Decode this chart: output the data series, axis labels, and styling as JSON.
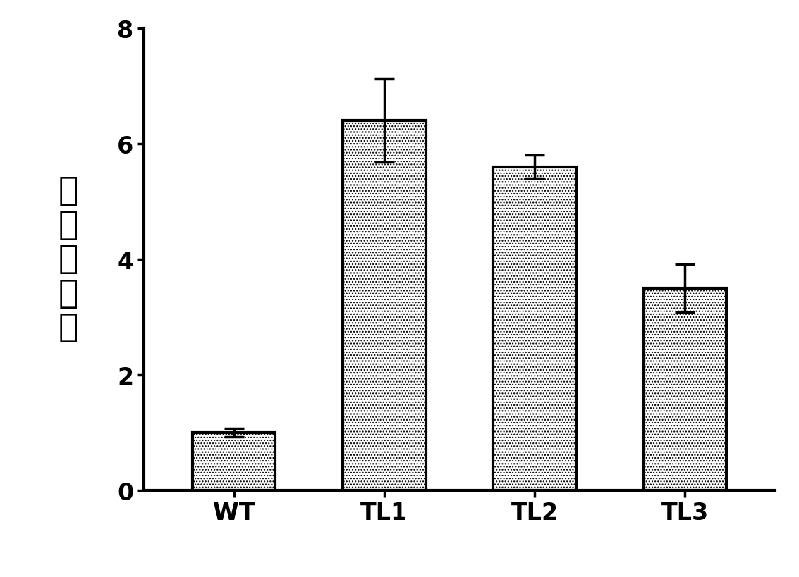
{
  "categories": [
    "WT",
    "TL1",
    "TL2",
    "TL3"
  ],
  "values": [
    1.0,
    6.4,
    5.6,
    3.5
  ],
  "errors": [
    0.07,
    0.72,
    0.2,
    0.42
  ],
  "ylabel_chars": [
    "相",
    "对",
    "表",
    "达",
    "量"
  ],
  "ylim": [
    0,
    8
  ],
  "yticks": [
    0,
    2,
    4,
    6,
    8
  ],
  "bar_color": "white",
  "bar_edgecolor": "black",
  "bar_linewidth": 3.0,
  "error_linewidth": 2.5,
  "error_capsize": 10,
  "background_color": "white",
  "bar_width": 0.55,
  "tick_fontsize": 24,
  "ylabel_fontsize": 34,
  "xlabel_fontsize": 24
}
